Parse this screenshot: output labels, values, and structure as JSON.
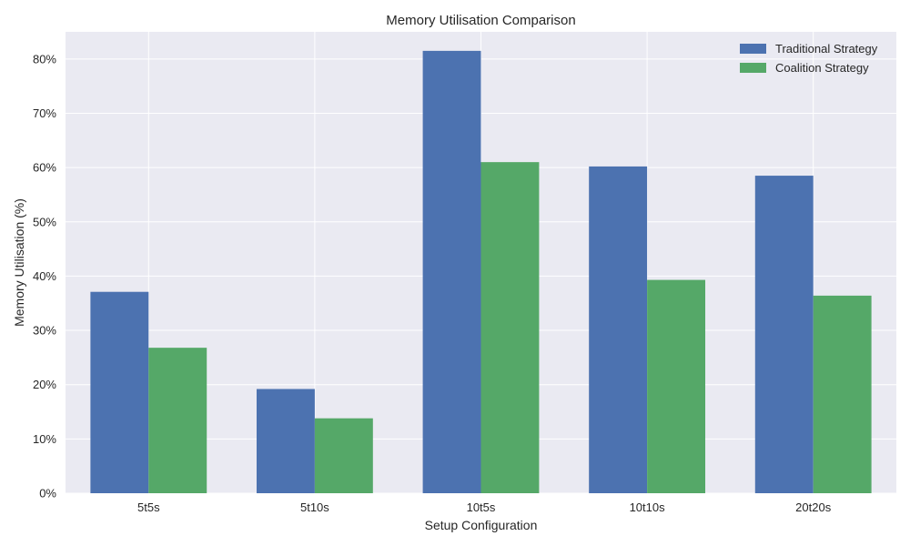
{
  "chart_data": {
    "type": "bar",
    "title": "Memory Utilisation Comparison",
    "xlabel": "Setup Configuration",
    "ylabel": "Memory Utilisation (%)",
    "categories": [
      "5t5s",
      "5t10s",
      "10t5s",
      "10t10s",
      "20t20s"
    ],
    "series": [
      {
        "name": "Traditional Strategy",
        "color": "#4c72b0",
        "values": [
          37.1,
          19.2,
          81.5,
          60.2,
          58.5
        ]
      },
      {
        "name": "Coalition Strategy",
        "color": "#55a868",
        "values": [
          26.8,
          13.8,
          61.0,
          39.3,
          36.4
        ]
      }
    ],
    "ylim": [
      0,
      85
    ],
    "yticks": [
      0,
      10,
      20,
      30,
      40,
      50,
      60,
      70,
      80
    ],
    "ytick_labels": [
      "0%",
      "10%",
      "20%",
      "30%",
      "40%",
      "50%",
      "60%",
      "70%",
      "80%"
    ],
    "grid": true,
    "legend_position": "top-right",
    "colors": {
      "plot_background": "#eaeaf2",
      "grid": "#ffffff"
    }
  }
}
